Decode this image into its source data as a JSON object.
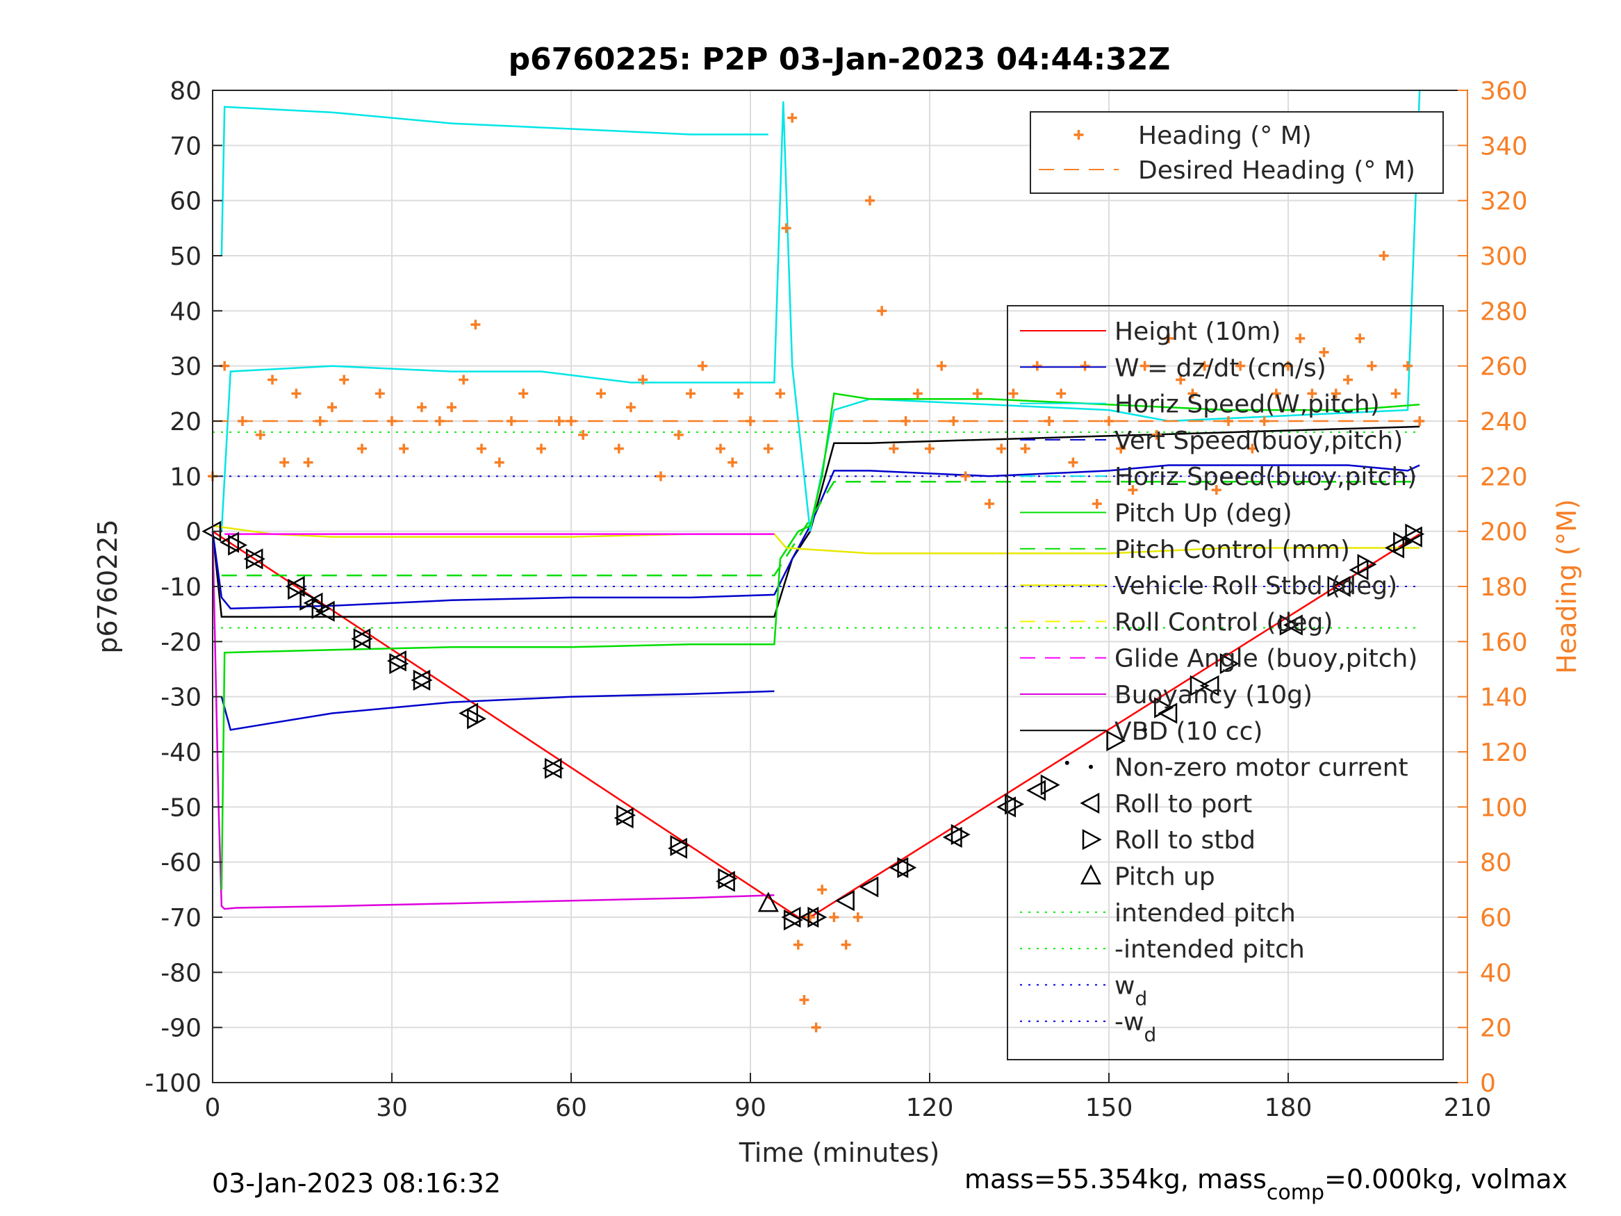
{
  "chart_data": {
    "type": "line",
    "title": "p6760225: P2P 03-Jan-2023 04:44:32Z",
    "xlabel": "Time (minutes)",
    "ylabel_left": "p6760225",
    "ylabel_right": "Heading (°M)",
    "xlim": [
      0,
      210
    ],
    "ylim_left": [
      -100,
      80
    ],
    "ylim_right": [
      0,
      360
    ],
    "xticks": [
      "0",
      "30",
      "60",
      "90",
      "120",
      "150",
      "180",
      "210"
    ],
    "yticks_left": [
      "80",
      "70",
      "60",
      "50",
      "40",
      "30",
      "20",
      "10",
      "0",
      "-10",
      "-20",
      "-30",
      "-40",
      "-50",
      "-60",
      "-70",
      "-80",
      "-90",
      "-100"
    ],
    "yticks_right": [
      "360",
      "340",
      "320",
      "300",
      "280",
      "260",
      "240",
      "220",
      "200",
      "180",
      "160",
      "140",
      "120",
      "100",
      "80",
      "60",
      "40",
      "20",
      "0"
    ],
    "grid": true,
    "footer_left": "03-Jan-2023 08:16:32",
    "footer_right_a": "mass=55.354kg, mass",
    "footer_right_sub": "comp",
    "footer_right_b": "=0.000kg, volmax",
    "legend_heading": [
      {
        "label": "Heading (° M)",
        "color": "#f77f26"
      },
      {
        "label": "Desired Heading (° M)",
        "color": "#f77f26"
      }
    ],
    "legend_main": [
      {
        "label": "Height (10m)",
        "color": "#ff0000"
      },
      {
        "label": "W = dz/dt (cm/s)",
        "color": "#0000cc"
      },
      {
        "label": "Horiz Speed(W,pitch)",
        "color": "#00e5e5"
      },
      {
        "label": "Vert Speed(buoy,pitch)",
        "color": "#0000cc"
      },
      {
        "label": "Horiz Speed(buoy,pitch)",
        "color": "#00e5e5"
      },
      {
        "label": "Pitch Up (deg)",
        "color": "#00dd00"
      },
      {
        "label": "Pitch Control (mm)",
        "color": "#00dd00"
      },
      {
        "label": "Vehicle Roll Stbd (deg)",
        "color": "#e8e800"
      },
      {
        "label": "Roll Control (deg)",
        "color": "#f5f500"
      },
      {
        "label": "Glide Angle (buoy,pitch)",
        "color": "#ff00ff"
      },
      {
        "label": "Buoyancy (10g)",
        "color": "#dd00dd"
      },
      {
        "label": "VBD (10 cc)",
        "color": "#000000"
      },
      {
        "label": "Non-zero motor current",
        "color": "#000000"
      },
      {
        "label": "Roll to port",
        "color": "#000000"
      },
      {
        "label": "Roll to stbd",
        "color": "#000000"
      },
      {
        "label": "Pitch up",
        "color": "#000000"
      },
      {
        "label": "intended pitch",
        "color": "#00ee00"
      },
      {
        "label": "-intended pitch",
        "color": "#00ee00"
      },
      {
        "label": "w",
        "sub": "d",
        "color": "#0000dd"
      },
      {
        "label": "-w",
        "sub": "d",
        "color": "#0000dd"
      }
    ],
    "series": [
      {
        "name": "Height (10m)",
        "color": "#ff0000",
        "x": [
          0,
          98,
          100,
          202
        ],
        "y": [
          0,
          -70,
          -70,
          -0.5
        ]
      },
      {
        "name": "VBD (10 cc)",
        "color": "#000000",
        "x": [
          0,
          1.5,
          94,
          97,
          100,
          104,
          110,
          202
        ],
        "y": [
          0,
          -15.5,
          -15.5,
          -5,
          0,
          16,
          16,
          19
        ]
      },
      {
        "name": "Buoyancy (10g)",
        "color": "#dd00dd",
        "x": [
          0,
          1,
          1.5,
          2,
          4,
          20,
          40,
          60,
          80,
          94
        ],
        "y": [
          0,
          -50,
          -68,
          -68.5,
          -68.3,
          -68,
          -67.5,
          -67,
          -66.5,
          -66
        ]
      },
      {
        "name": "W = dz/dt (cm/s)",
        "color": "#0000cc",
        "x": [
          0,
          1.5,
          3,
          20,
          40,
          60,
          80,
          94,
          97,
          100,
          104,
          110,
          130,
          150,
          160,
          170,
          180,
          190,
          200,
          202
        ],
        "y": [
          0,
          -12,
          -14,
          -13.5,
          -12.5,
          -12,
          -12,
          -11.5,
          -5,
          1,
          11,
          11,
          10,
          11,
          12,
          12,
          12,
          12,
          11,
          12
        ]
      },
      {
        "name": "Vert Speed(buoy,pitch)",
        "color": "#0000cc",
        "x": [
          1.5,
          3,
          20,
          40,
          60,
          80,
          94
        ],
        "y": [
          -30,
          -36,
          -33,
          -31,
          -30,
          -29.5,
          -29
        ]
      },
      {
        "name": "Horiz Speed(W,pitch)",
        "color": "#00e5e5",
        "x": [
          1.5,
          3,
          20,
          40,
          55,
          70,
          94,
          95.5,
          97,
          100,
          104,
          110,
          130,
          150,
          160,
          180,
          200,
          202
        ],
        "y": [
          0,
          29,
          30,
          29,
          29,
          27,
          27,
          78,
          30,
          0,
          22,
          24,
          23,
          22,
          20,
          21,
          22,
          80
        ]
      },
      {
        "name": "Horiz Speed(buoy,pitch)",
        "color": "#00e5e5",
        "x": [
          1.5,
          2,
          20,
          40,
          60,
          80,
          93
        ],
        "y": [
          50,
          77,
          76,
          74,
          73,
          72,
          72
        ]
      },
      {
        "name": "Pitch Up (deg)",
        "color": "#00dd00",
        "x": [
          1.5,
          2,
          20,
          40,
          60,
          80,
          94,
          95,
          98,
          100,
          102,
          104,
          110,
          130,
          150,
          170,
          190,
          202
        ],
        "y": [
          -65,
          -22,
          -21.5,
          -21,
          -21,
          -20.5,
          -20.5,
          -5,
          0,
          1,
          10,
          25,
          24,
          24,
          23,
          22,
          22,
          23
        ]
      },
      {
        "name": "Pitch Control (mm)",
        "color": "#00dd00",
        "x": [
          1.5,
          94,
          104,
          202
        ],
        "y": [
          -8,
          -8,
          9,
          9
        ]
      },
      {
        "name": "Vehicle Roll Stbd (deg)",
        "color": "#e8e800",
        "x": [
          0,
          10,
          20,
          40,
          60,
          80,
          94,
          96,
          110,
          130,
          150,
          170,
          190,
          202
        ],
        "y": [
          1,
          -0.5,
          -1,
          -1,
          -1,
          -0.5,
          -0.5,
          -3,
          -4,
          -4,
          -4,
          -3,
          -3,
          -3
        ]
      },
      {
        "name": "Glide Angle (buoy,pitch)",
        "color": "#ff00ff",
        "x": [
          2,
          94
        ],
        "y": [
          -0.5,
          -0.5
        ]
      },
      {
        "name": "Heading (° M)",
        "axis": "right",
        "color": "#f77f26",
        "x": [
          0,
          2,
          5,
          8,
          10,
          12,
          14,
          16,
          18,
          20,
          22,
          25,
          28,
          30,
          32,
          35,
          38,
          40,
          42,
          44,
          45,
          48,
          50,
          52,
          55,
          58,
          60,
          62,
          65,
          68,
          70,
          72,
          75,
          78,
          80,
          82,
          85,
          87,
          88,
          90,
          93,
          95,
          96,
          97,
          98,
          99,
          100,
          101,
          102,
          104,
          106,
          108,
          110,
          112,
          114,
          116,
          118,
          120,
          122,
          124,
          126,
          128,
          130,
          132,
          134,
          136,
          138,
          140,
          142,
          144,
          146,
          148,
          150,
          152,
          154,
          156,
          158,
          160,
          162,
          164,
          166,
          168,
          170,
          172,
          174,
          176,
          178,
          180,
          182,
          184,
          186,
          188,
          190,
          192,
          194,
          196,
          198,
          200,
          202
        ],
        "y": [
          220,
          260,
          240,
          235,
          255,
          225,
          250,
          225,
          240,
          245,
          255,
          230,
          250,
          240,
          230,
          245,
          240,
          245,
          255,
          275,
          230,
          225,
          240,
          250,
          230,
          240,
          240,
          235,
          250,
          230,
          245,
          255,
          220,
          235,
          250,
          260,
          230,
          225,
          250,
          240,
          230,
          250,
          310,
          350,
          50,
          30,
          60,
          20,
          70,
          60,
          50,
          60,
          320,
          280,
          230,
          240,
          250,
          230,
          260,
          240,
          220,
          250,
          210,
          230,
          250,
          230,
          260,
          240,
          250,
          225,
          260,
          210,
          240,
          230,
          215,
          260,
          235,
          270,
          255,
          250,
          260,
          215,
          240,
          260,
          230,
          240,
          250,
          260,
          270,
          250,
          265,
          250,
          255,
          270,
          260,
          300,
          250,
          260,
          240
        ]
      },
      {
        "name": "Desired Heading (° M)",
        "axis": "right",
        "color": "#f77f26",
        "x": [
          0,
          202
        ],
        "y": [
          240,
          240
        ]
      }
    ],
    "reference_lines": [
      {
        "name": "intended pitch",
        "color": "#00ee00",
        "y": 18
      },
      {
        "name": "-intended pitch",
        "color": "#00ee00",
        "y": -17.5
      },
      {
        "name": "wd",
        "color": "#0000dd",
        "y": 10
      },
      {
        "name": "-wd",
        "color": "#0000dd",
        "y": -10
      }
    ],
    "markers": {
      "roll_to_port": [
        [
          0,
          0
        ],
        [
          3,
          -2
        ],
        [
          7,
          -5
        ],
        [
          14,
          -10
        ],
        [
          17,
          -13
        ],
        [
          19,
          -14.5
        ],
        [
          25,
          -19.5
        ],
        [
          31,
          -23.5
        ],
        [
          35,
          -27
        ],
        [
          43,
          -33
        ],
        [
          57,
          -43
        ],
        [
          69,
          -52
        ],
        [
          78,
          -57.5
        ],
        [
          86,
          -63.5
        ],
        [
          97,
          -70
        ],
        [
          100,
          -70
        ],
        [
          106,
          -67
        ],
        [
          110,
          -64.5
        ],
        [
          115,
          -61
        ],
        [
          124,
          -55.5
        ],
        [
          133,
          -50
        ],
        [
          138,
          -47
        ],
        [
          160,
          -33
        ],
        [
          167,
          -28
        ],
        [
          181,
          -17
        ],
        [
          189,
          -10
        ],
        [
          192,
          -7
        ],
        [
          198,
          -3
        ],
        [
          201,
          -1
        ]
      ],
      "roll_to_stbd": [
        [
          4,
          -2.5
        ],
        [
          7,
          -5
        ],
        [
          14,
          -10.5
        ],
        [
          16,
          -12.5
        ],
        [
          18,
          -14
        ],
        [
          25,
          -19.5
        ],
        [
          31,
          -24
        ],
        [
          35,
          -27
        ],
        [
          44,
          -34
        ],
        [
          57,
          -43
        ],
        [
          69,
          -51.5
        ],
        [
          78,
          -57
        ],
        [
          86,
          -63
        ],
        [
          97,
          -70.5
        ],
        [
          101,
          -70
        ],
        [
          116,
          -61
        ],
        [
          125,
          -55
        ],
        [
          134,
          -49.5
        ],
        [
          140,
          -46
        ],
        [
          151,
          -38
        ],
        [
          159,
          -32
        ],
        [
          165,
          -28
        ],
        [
          170,
          -24
        ],
        [
          180,
          -17
        ],
        [
          188,
          -10
        ],
        [
          193,
          -6
        ],
        [
          199,
          -2
        ],
        [
          201,
          -0.5
        ]
      ],
      "pitch_up": [
        [
          93,
          -67.5
        ]
      ],
      "motor_current": [
        [
          143,
          -42
        ],
        [
          156,
          -36
        ]
      ]
    }
  }
}
